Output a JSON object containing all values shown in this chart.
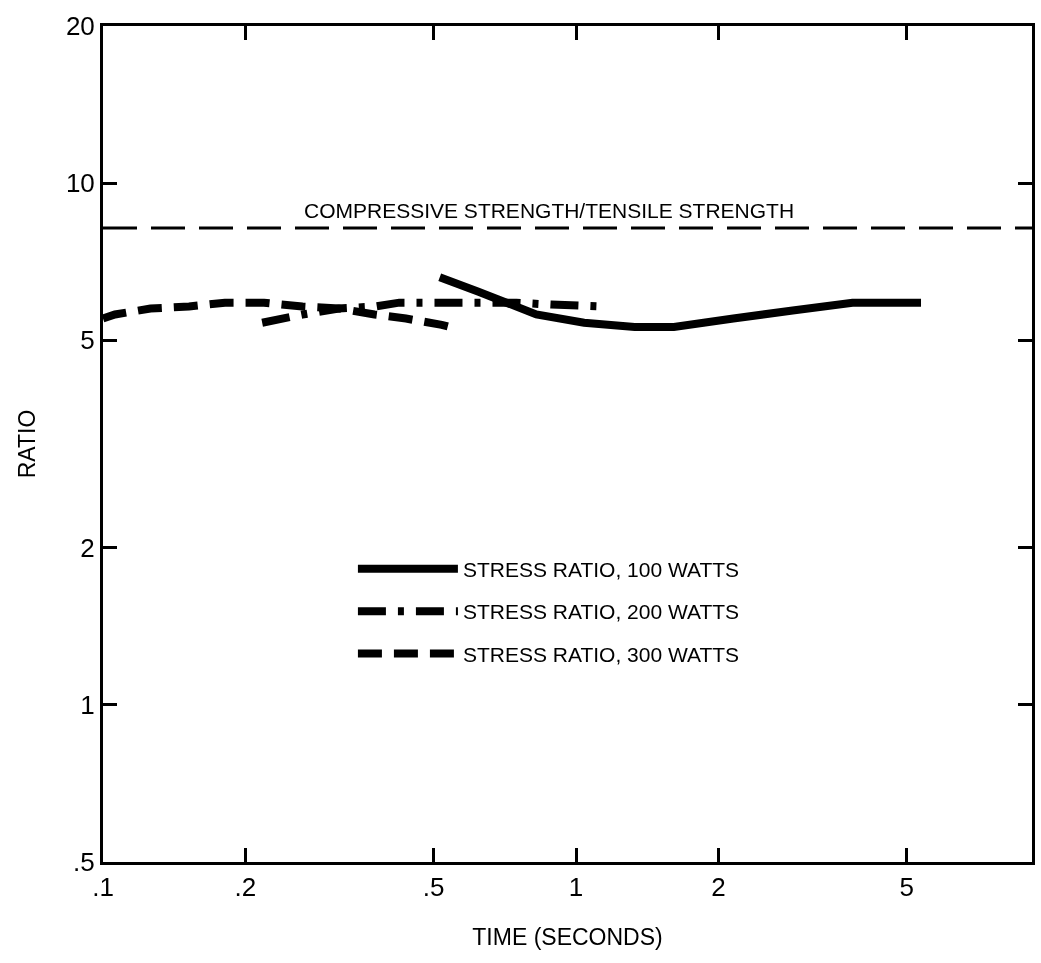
{
  "chart_data": {
    "type": "line",
    "xlabel": "TIME (SECONDS)",
    "ylabel": "RATIO",
    "log": "xy",
    "xlim": [
      0.1,
      9.2
    ],
    "ylim": [
      0.5,
      20
    ],
    "xticks": [
      {
        "value": 0.1,
        "label": ".1"
      },
      {
        "value": 0.2,
        "label": ".2"
      },
      {
        "value": 0.5,
        "label": ".5"
      },
      1,
      2,
      5
    ],
    "yticks": [
      {
        "value": 0.5,
        "label": ".5"
      },
      1,
      2,
      5,
      10,
      20
    ],
    "legend": "center",
    "ref_lines": [
      {
        "axis": "y",
        "value": 8.2,
        "label": "COMPRESSIVE STRENGTH/TENSILE STRENGTH",
        "color": "#000000",
        "line_style": "dashed"
      }
    ],
    "series": [
      {
        "name": "STRESS RATIO, 100 WATTS",
        "color": "#000000",
        "line_style": "solid",
        "x": [
          0.515,
          0.62,
          0.824,
          1.04,
          1.33,
          1.61,
          2.15,
          2.87,
          3.84,
          5.36
        ],
        "values": [
          6.6,
          6.2,
          5.6,
          5.4,
          5.3,
          5.3,
          5.5,
          5.7,
          5.9,
          5.9
        ]
      },
      {
        "name": "STRESS RATIO, 200 WATTS",
        "color": "#000000",
        "line_style": "dashdot",
        "x": [
          0.217,
          0.264,
          0.315,
          0.375,
          0.423,
          0.484,
          0.596,
          0.748,
          0.886,
          1.14
        ],
        "values": [
          5.4,
          5.6,
          5.75,
          5.8,
          5.9,
          5.9,
          5.9,
          5.9,
          5.85,
          5.8
        ]
      },
      {
        "name": "STRESS RATIO, 300 WATTS",
        "color": "#000000",
        "line_style": "dashed",
        "x": [
          0.1,
          0.106,
          0.126,
          0.152,
          0.181,
          0.219,
          0.264,
          0.315,
          0.375,
          0.437,
          0.52,
          0.541
        ],
        "values": [
          5.5,
          5.6,
          5.75,
          5.8,
          5.9,
          5.9,
          5.8,
          5.75,
          5.6,
          5.5,
          5.35,
          5.3
        ]
      }
    ]
  }
}
